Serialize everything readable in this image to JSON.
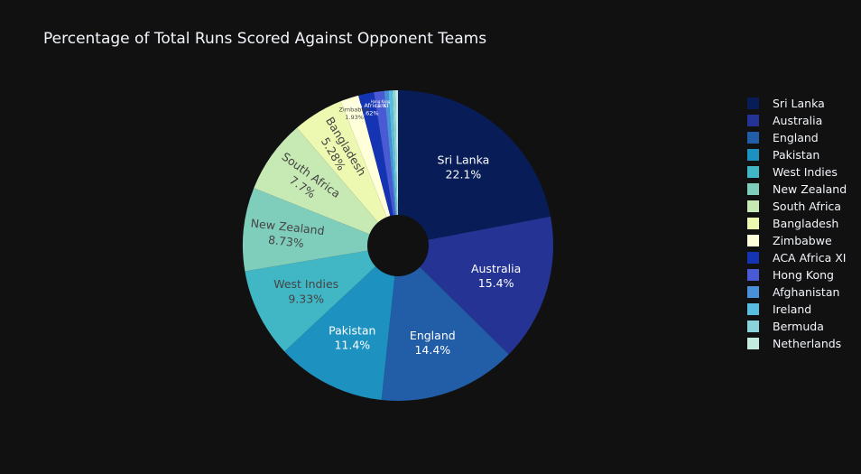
{
  "chart_data": {
    "type": "pie",
    "title": "Percentage of Total Runs Scored Against Opponent Teams",
    "hole": true,
    "legend_position": "right",
    "slices": [
      {
        "label": "Sri Lanka",
        "value": 22.1,
        "percent_text": "22.1%",
        "color": "#081d58"
      },
      {
        "label": "Australia",
        "value": 15.4,
        "percent_text": "15.4%",
        "color": "#253494"
      },
      {
        "label": "England",
        "value": 14.4,
        "percent_text": "14.4%",
        "color": "#225ea8"
      },
      {
        "label": "Pakistan",
        "value": 11.4,
        "percent_text": "11.4%",
        "color": "#1d91c0"
      },
      {
        "label": "West Indies",
        "value": 9.33,
        "percent_text": "9.33%",
        "color": "#41b6c4"
      },
      {
        "label": "New Zealand",
        "value": 8.73,
        "percent_text": "8.73%",
        "color": "#7fcdbb"
      },
      {
        "label": "South Africa",
        "value": 7.7,
        "percent_text": "7.7%",
        "color": "#c7e9b4"
      },
      {
        "label": "Bangladesh",
        "value": 5.28,
        "percent_text": "5.28%",
        "color": "#edf8b1"
      },
      {
        "label": "Zimbabwe",
        "value": 1.93,
        "percent_text": "1.93%",
        "color": "#ffffd9"
      },
      {
        "label": "ACA Africa XI",
        "value": 1.62,
        "percent_text": "1.62%",
        "color": "#1434b4"
      },
      {
        "label": "Hong Kong",
        "value": 1.07,
        "percent_text": "1.07%",
        "color": "#4a5ad4"
      },
      {
        "label": "Afghanistan",
        "value": 0.45,
        "percent_text": "",
        "color": "#4a90d9"
      },
      {
        "label": "Ireland",
        "value": 0.4,
        "percent_text": "",
        "color": "#58bde0"
      },
      {
        "label": "Bermuda",
        "value": 0.3,
        "percent_text": "",
        "color": "#8ad3da"
      },
      {
        "label": "Netherlands",
        "value": 0.28,
        "percent_text": "",
        "color": "#c4ebe0"
      }
    ]
  }
}
